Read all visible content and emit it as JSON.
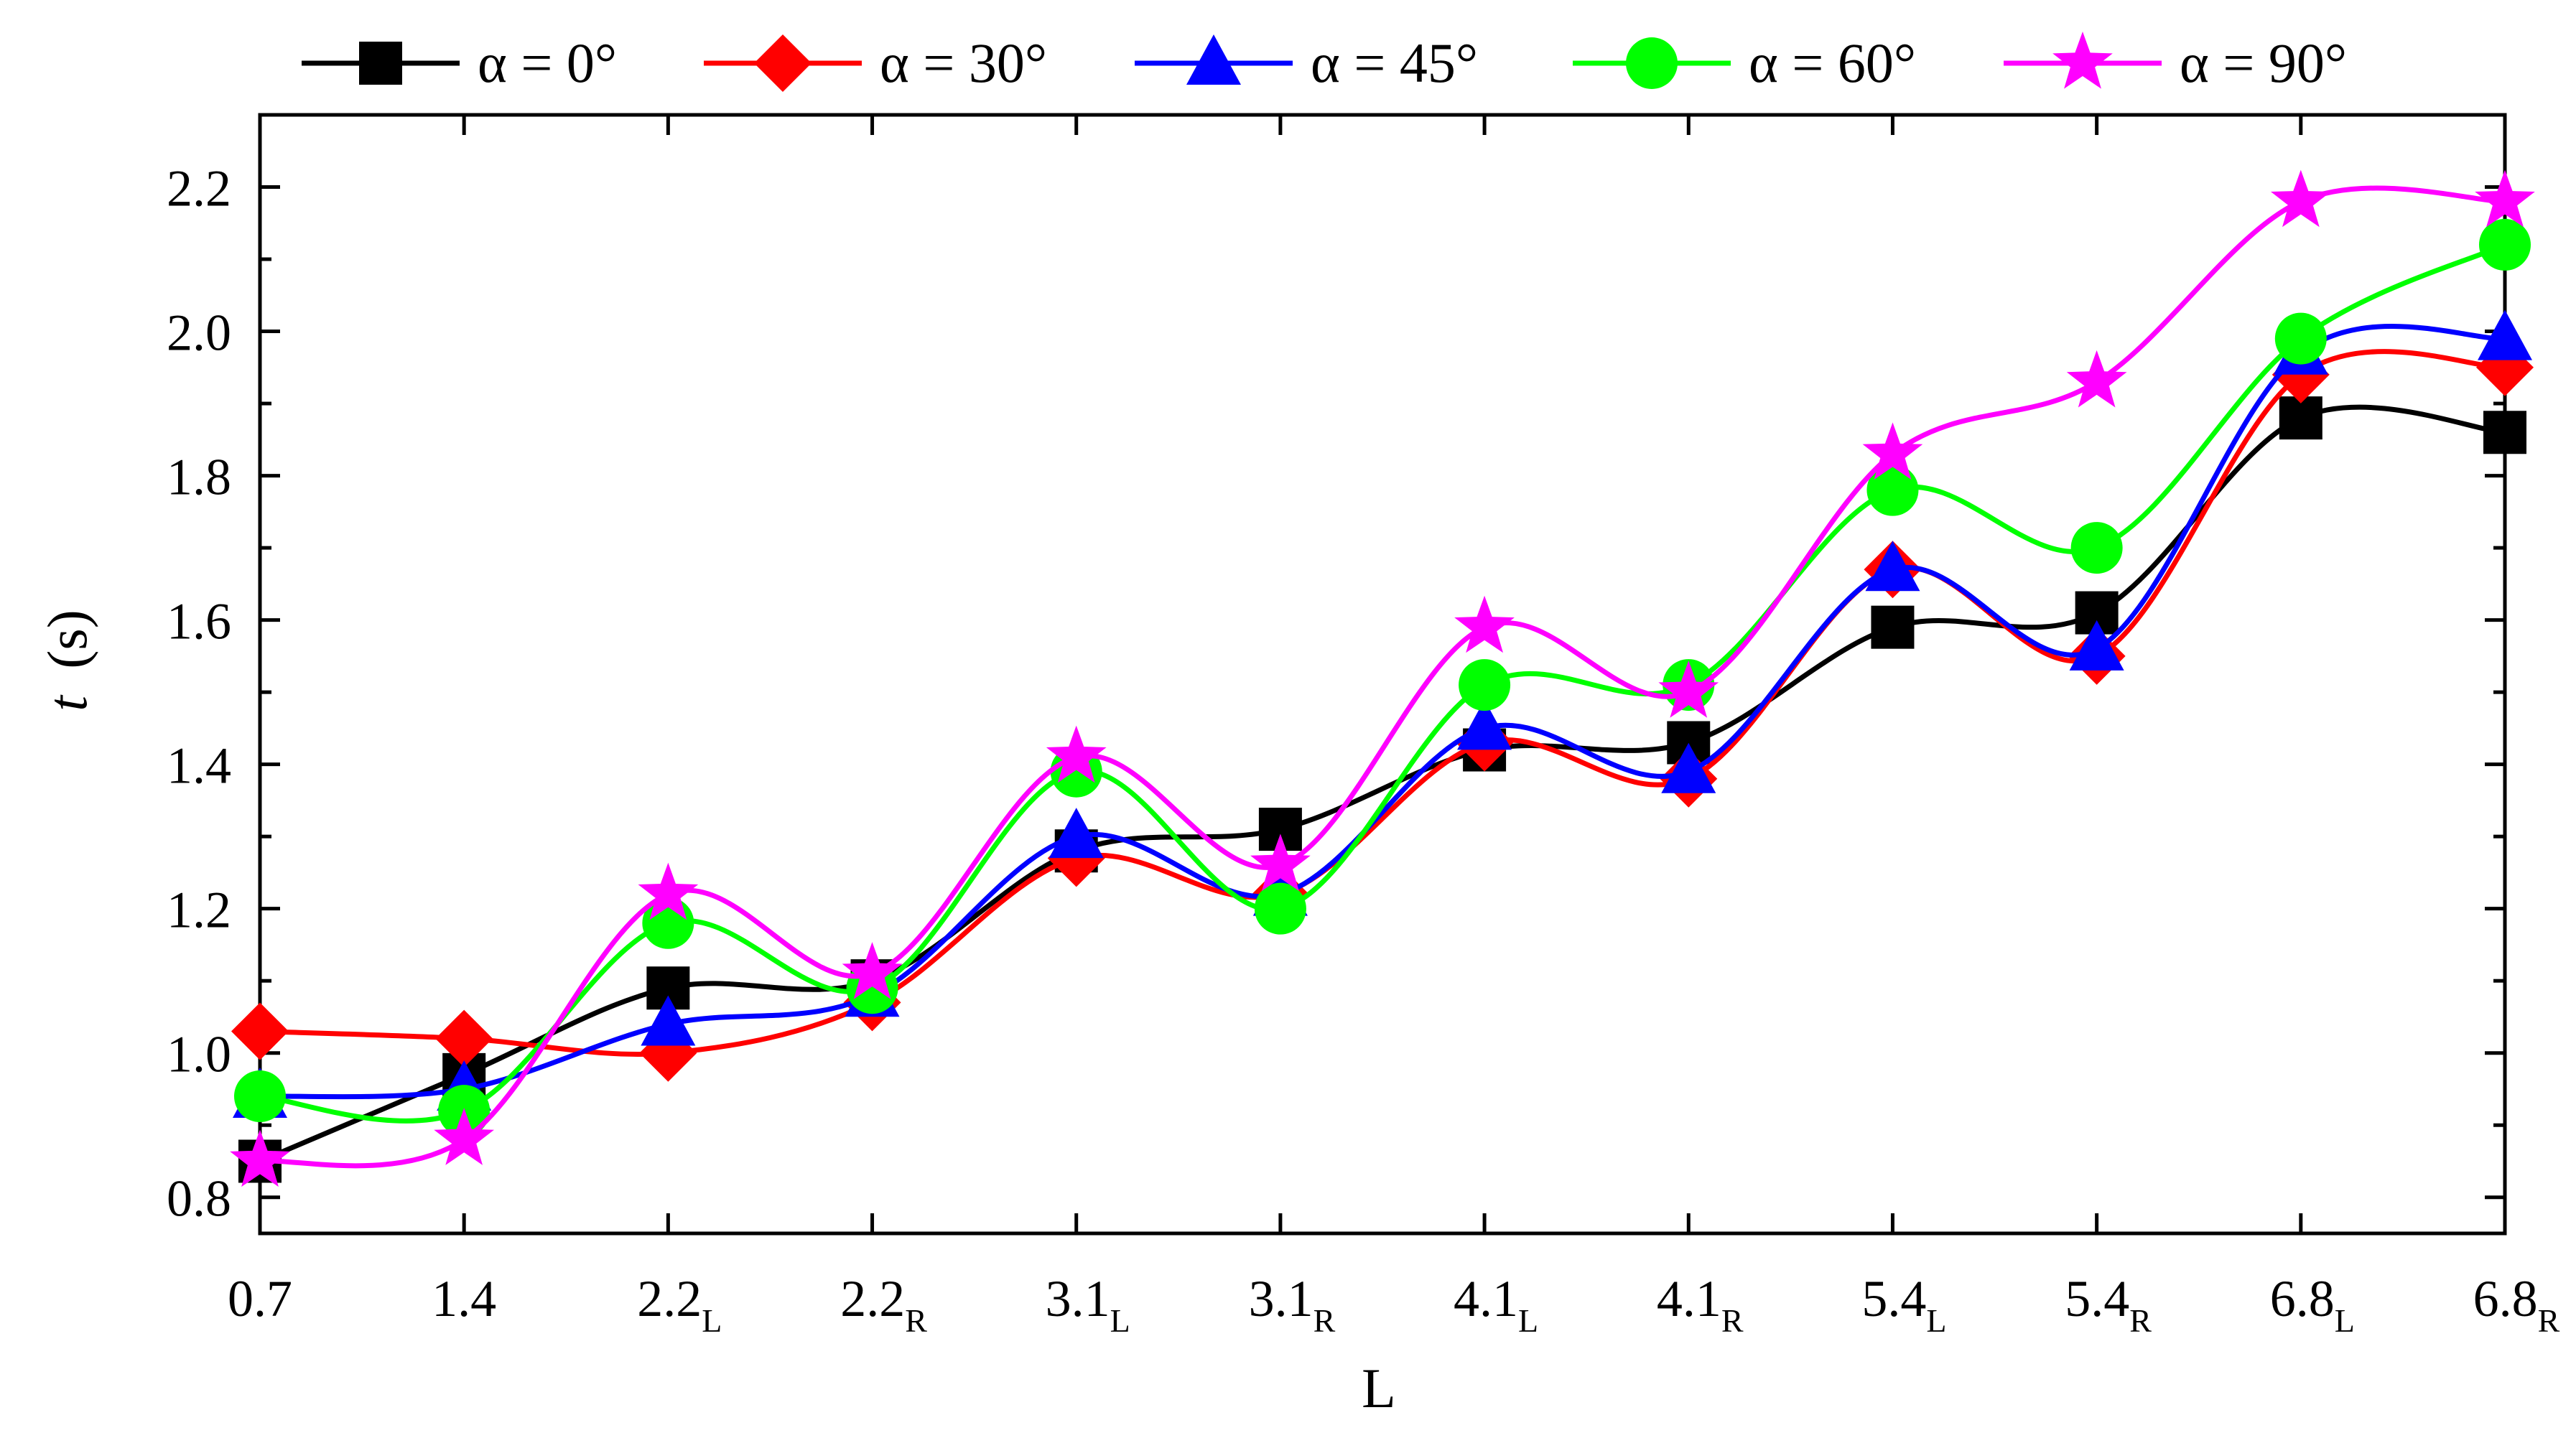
{
  "chart_data": {
    "type": "line",
    "title": "",
    "xlabel": "L",
    "ylabel_main": "t",
    "ylabel_unit": "(s)",
    "ylim": [
      0.75,
      2.3
    ],
    "yticks": [
      {
        "value": 0.8,
        "label": "0.8"
      },
      {
        "value": 1.0,
        "label": "1.0"
      },
      {
        "value": 1.2,
        "label": "1.2"
      },
      {
        "value": 1.4,
        "label": "1.4"
      },
      {
        "value": 1.6,
        "label": "1.6"
      },
      {
        "value": 1.8,
        "label": "1.8"
      },
      {
        "value": 2.0,
        "label": "2.0"
      },
      {
        "value": 2.2,
        "label": "2.2"
      }
    ],
    "categories": [
      {
        "main": "0.7",
        "sub": ""
      },
      {
        "main": "1.4",
        "sub": ""
      },
      {
        "main": "2.2",
        "sub": "L"
      },
      {
        "main": "2.2",
        "sub": "R"
      },
      {
        "main": "3.1",
        "sub": "L"
      },
      {
        "main": "3.1",
        "sub": "R"
      },
      {
        "main": "4.1",
        "sub": "L"
      },
      {
        "main": "4.1",
        "sub": "R"
      },
      {
        "main": "5.4",
        "sub": "L"
      },
      {
        "main": "5.4",
        "sub": "R"
      },
      {
        "main": "6.8",
        "sub": "L"
      },
      {
        "main": "6.8",
        "sub": "R"
      }
    ],
    "legend_position": "top",
    "series": [
      {
        "name": "α = 0°",
        "color": "#000000",
        "marker": "square",
        "values": [
          0.85,
          0.97,
          1.09,
          1.1,
          1.28,
          1.31,
          1.42,
          1.43,
          1.59,
          1.61,
          1.88,
          1.86
        ]
      },
      {
        "name": "α = 30°",
        "color": "#ff0000",
        "marker": "diamond",
        "values": [
          1.03,
          1.02,
          1.0,
          1.07,
          1.27,
          1.22,
          1.43,
          1.38,
          1.67,
          1.55,
          1.94,
          1.95
        ]
      },
      {
        "name": "α = 45°",
        "color": "#0000ff",
        "marker": "triangle",
        "values": [
          0.94,
          0.95,
          1.04,
          1.08,
          1.3,
          1.22,
          1.45,
          1.39,
          1.67,
          1.56,
          1.97,
          1.99
        ]
      },
      {
        "name": "α = 60°",
        "color": "#00ff00",
        "marker": "circle",
        "values": [
          0.94,
          0.92,
          1.18,
          1.09,
          1.39,
          1.2,
          1.51,
          1.51,
          1.78,
          1.7,
          1.99,
          2.12
        ]
      },
      {
        "name": "α = 90°",
        "color": "#ff00ff",
        "marker": "star",
        "values": [
          0.85,
          0.88,
          1.22,
          1.11,
          1.41,
          1.26,
          1.59,
          1.5,
          1.83,
          1.93,
          2.18,
          2.18
        ]
      }
    ]
  }
}
